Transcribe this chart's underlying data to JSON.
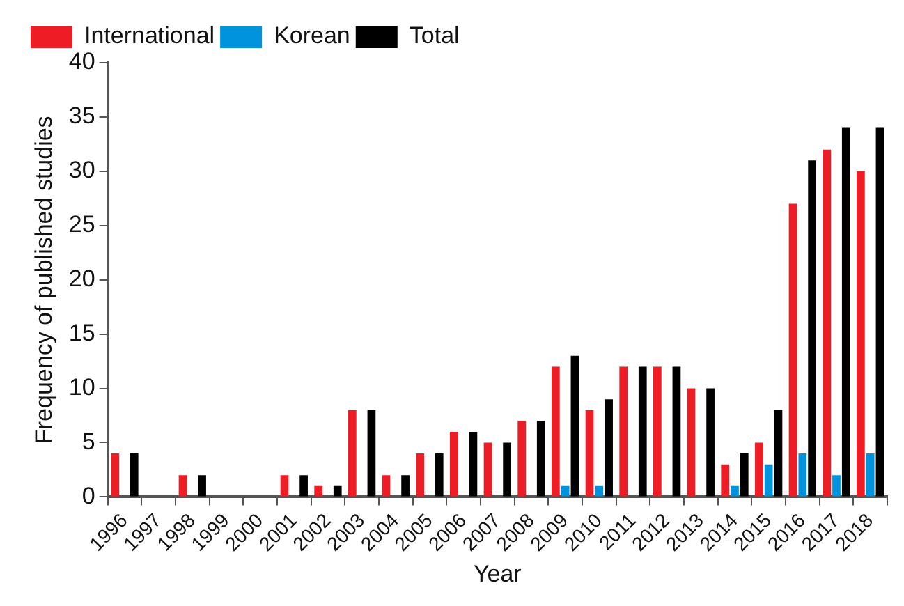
{
  "chart_data": {
    "type": "bar",
    "xlabel": "Year",
    "ylabel": "Frequency of published studies",
    "categories": [
      "1996",
      "1997",
      "1998",
      "1999",
      "2000",
      "2001",
      "2002",
      "2003",
      "2004",
      "2005",
      "2006",
      "2007",
      "2008",
      "2009",
      "2010",
      "2011",
      "2012",
      "2013",
      "2014",
      "2015",
      "2016",
      "2017",
      "2018"
    ],
    "series": [
      {
        "name": "International",
        "color": "#ee1c25",
        "values": [
          4,
          0,
          2,
          0,
          0,
          2,
          1,
          8,
          2,
          4,
          6,
          5,
          7,
          12,
          8,
          12,
          12,
          10,
          3,
          5,
          27,
          32,
          30
        ]
      },
      {
        "name": "Korean",
        "color": "#0093dd",
        "values": [
          0,
          0,
          0,
          0,
          0,
          0,
          0,
          0,
          0,
          0,
          0,
          0,
          0,
          1,
          1,
          0,
          0,
          0,
          1,
          3,
          4,
          2,
          4
        ]
      },
      {
        "name": "Total",
        "color": "#000000",
        "values": [
          4,
          0,
          2,
          0,
          0,
          2,
          1,
          8,
          2,
          4,
          6,
          5,
          7,
          13,
          9,
          12,
          12,
          10,
          4,
          8,
          31,
          34,
          34
        ]
      }
    ],
    "ylim": [
      0,
      40
    ],
    "yticks": [
      0,
      5,
      10,
      15,
      20,
      25,
      30,
      35,
      40
    ],
    "grid": false,
    "legend": "top left"
  }
}
